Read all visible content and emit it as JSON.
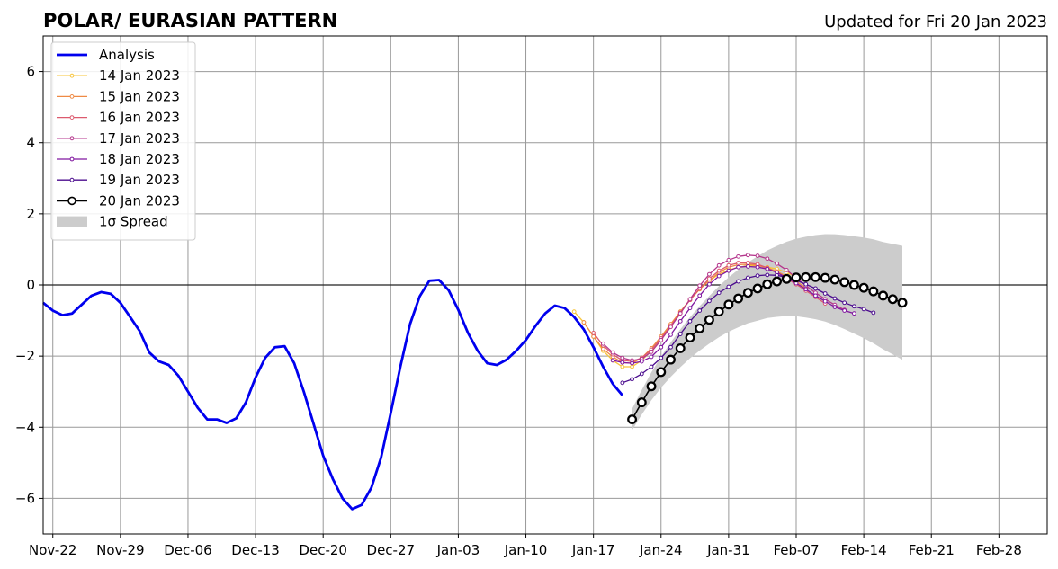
{
  "chart_data": {
    "type": "line",
    "title": "POLAR/ EURASIAN  PATTERN",
    "subtitle": "Updated for Fri 20 Jan 2023",
    "xlabel": "",
    "ylabel": "",
    "xlim": [
      "2022-11-21",
      "2023-03-05"
    ],
    "ylim": [
      -7,
      7
    ],
    "grid": true,
    "legend_position": "upper-left",
    "x_ticks": [
      "2022-11-22",
      "2022-11-29",
      "2022-12-06",
      "2022-12-13",
      "2022-12-20",
      "2022-12-27",
      "2023-01-03",
      "2023-01-10",
      "2023-01-17",
      "2023-01-24",
      "2023-01-31",
      "2023-02-07",
      "2023-02-14",
      "2023-02-21",
      "2023-02-28"
    ],
    "x_tick_labels": [
      "Nov-22",
      "Nov-29",
      "Dec-06",
      "Dec-13",
      "Dec-20",
      "Dec-27",
      "Jan-03",
      "Jan-10",
      "Jan-17",
      "Jan-24",
      "Jan-31",
      "Feb-07",
      "Feb-14",
      "Feb-21",
      "Feb-28"
    ],
    "y_ticks": [
      -6,
      -4,
      -2,
      0,
      2,
      4,
      6
    ],
    "y_tick_labels": [
      "−6",
      "−4",
      "−2",
      "0",
      "2",
      "4",
      "6"
    ],
    "series": [
      {
        "name": "Analysis",
        "color": "#0000ee",
        "style": "thick-line",
        "start": "2022-11-21",
        "values": [
          -0.5,
          -0.72,
          -0.85,
          -0.8,
          -0.55,
          -0.3,
          -0.2,
          -0.25,
          -0.5,
          -0.9,
          -1.3,
          -1.9,
          -2.15,
          -2.25,
          -2.55,
          -3.0,
          -3.45,
          -3.78,
          -3.78,
          -3.88,
          -3.75,
          -3.3,
          -2.6,
          -2.05,
          -1.75,
          -1.72,
          -2.2,
          -3.0,
          -3.9,
          -4.8,
          -5.45,
          -6.0,
          -6.3,
          -6.18,
          -5.7,
          -4.85,
          -3.6,
          -2.3,
          -1.1,
          -0.32,
          0.12,
          0.14,
          -0.15,
          -0.7,
          -1.35,
          -1.85,
          -2.2,
          -2.25,
          -2.1,
          -1.85,
          -1.55,
          -1.15,
          -0.8,
          -0.58,
          -0.65,
          -0.9,
          -1.25,
          -1.75,
          -2.3,
          -2.78,
          -3.1
        ]
      },
      {
        "name": "14 Jan 2023",
        "color": "#f7c43a",
        "style": "marker-line",
        "start": "2023-01-15",
        "values": [
          -0.75,
          -1.05,
          -1.45,
          -1.85,
          -2.12,
          -2.3,
          -2.3,
          -2.12,
          -1.85,
          -1.5,
          -1.12,
          -0.75,
          -0.42,
          -0.12,
          0.12,
          0.3,
          0.42,
          0.5,
          0.54,
          0.54,
          0.5,
          0.45,
          0.35,
          0.22
        ]
      },
      {
        "name": "15 Jan 2023",
        "color": "#ef8a44",
        "style": "marker-line",
        "start": "2023-01-16",
        "values": [
          -1.05,
          -1.45,
          -1.8,
          -2.02,
          -2.18,
          -2.2,
          -2.05,
          -1.78,
          -1.45,
          -1.1,
          -0.75,
          -0.42,
          -0.12,
          0.12,
          0.35,
          0.5,
          0.57,
          0.58,
          0.55,
          0.48,
          0.38,
          0.24,
          0.1,
          -0.08
        ]
      },
      {
        "name": "16 Jan 2023",
        "color": "#dc5a6e",
        "style": "marker-line",
        "start": "2023-01-17",
        "values": [
          -1.35,
          -1.7,
          -1.95,
          -2.12,
          -2.15,
          -2.05,
          -1.82,
          -1.5,
          -1.15,
          -0.78,
          -0.42,
          -0.1,
          0.18,
          0.4,
          0.55,
          0.62,
          0.62,
          0.58,
          0.48,
          0.35,
          0.18,
          0.02,
          -0.16,
          -0.34,
          -0.52
        ]
      },
      {
        "name": "17 Jan 2023",
        "color": "#b5368c",
        "style": "marker-line",
        "start": "2023-01-18",
        "values": [
          -1.65,
          -1.9,
          -2.05,
          -2.12,
          -2.08,
          -1.88,
          -1.55,
          -1.18,
          -0.8,
          -0.4,
          -0.02,
          0.3,
          0.55,
          0.7,
          0.8,
          0.84,
          0.82,
          0.74,
          0.6,
          0.42,
          0.2,
          -0.02,
          -0.22,
          -0.4,
          -0.56,
          -0.7
        ]
      },
      {
        "name": "18 Jan 2023",
        "color": "#8117a0",
        "style": "marker-line",
        "start": "2023-01-19",
        "values": [
          -2.12,
          -2.18,
          -2.2,
          -2.15,
          -2.02,
          -1.75,
          -1.4,
          -1.02,
          -0.65,
          -0.3,
          0.02,
          0.25,
          0.4,
          0.5,
          0.52,
          0.5,
          0.45,
          0.35,
          0.2,
          0.05,
          -0.12,
          -0.3,
          -0.46,
          -0.62,
          -0.72,
          -0.8
        ]
      },
      {
        "name": "19 Jan 2023",
        "color": "#4b0c8e",
        "style": "marker-line",
        "start": "2023-01-20",
        "values": [
          -2.75,
          -2.65,
          -2.5,
          -2.3,
          -2.05,
          -1.75,
          -1.38,
          -1.02,
          -0.72,
          -0.45,
          -0.22,
          -0.05,
          0.1,
          0.2,
          0.26,
          0.28,
          0.27,
          0.22,
          0.13,
          0.02,
          -0.1,
          -0.24,
          -0.38,
          -0.5,
          -0.6,
          -0.68,
          -0.78
        ]
      },
      {
        "name": "20 Jan 2023",
        "color": "#000000",
        "style": "circle-line",
        "start": "2023-01-21",
        "values": [
          -3.78,
          -3.3,
          -2.85,
          -2.45,
          -2.1,
          -1.78,
          -1.48,
          -1.22,
          -0.98,
          -0.75,
          -0.55,
          -0.38,
          -0.22,
          -0.1,
          0.02,
          0.1,
          0.17,
          0.21,
          0.22,
          0.22,
          0.2,
          0.15,
          0.08,
          0.0,
          -0.08,
          -0.18,
          -0.3,
          -0.4,
          -0.5
        ]
      }
    ],
    "spread": {
      "name": "1σ Spread",
      "color": "#cccccc",
      "start": "2023-01-21",
      "end": "2023-02-18",
      "center": [
        -3.78,
        -3.3,
        -2.85,
        -2.45,
        -2.1,
        -1.78,
        -1.48,
        -1.22,
        -0.98,
        -0.75,
        -0.55,
        -0.38,
        -0.22,
        -0.1,
        0.02,
        0.1,
        0.17,
        0.21,
        0.22,
        0.22,
        0.2,
        0.15,
        0.08,
        0.0,
        -0.08,
        -0.18,
        -0.3,
        -0.4,
        -0.5
      ],
      "sigma_start": 0.3,
      "sigma_end": 1.6
    }
  },
  "legend": {
    "entries": [
      "Analysis",
      "14 Jan 2023",
      "15 Jan 2023",
      "16 Jan 2023",
      "17 Jan 2023",
      "18 Jan 2023",
      "19 Jan 2023",
      "20 Jan 2023",
      "1σ Spread"
    ]
  }
}
